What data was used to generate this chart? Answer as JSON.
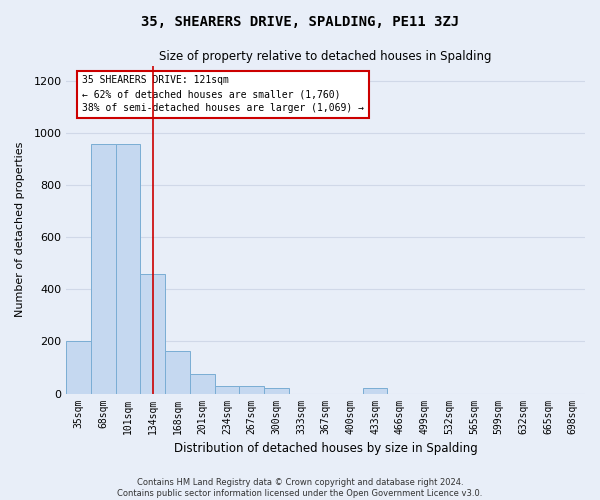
{
  "title": "35, SHEARERS DRIVE, SPALDING, PE11 3ZJ",
  "subtitle": "Size of property relative to detached houses in Spalding",
  "xlabel": "Distribution of detached houses by size in Spalding",
  "ylabel": "Number of detached properties",
  "bar_color": "#c5d8f0",
  "bar_edge_color": "#7aadd4",
  "background_color": "#e8eef8",
  "grid_color": "#d0d8e8",
  "categories": [
    "35sqm",
    "68sqm",
    "101sqm",
    "134sqm",
    "168sqm",
    "201sqm",
    "234sqm",
    "267sqm",
    "300sqm",
    "333sqm",
    "367sqm",
    "400sqm",
    "433sqm",
    "466sqm",
    "499sqm",
    "532sqm",
    "565sqm",
    "599sqm",
    "632sqm",
    "665sqm",
    "698sqm"
  ],
  "values": [
    200,
    960,
    960,
    460,
    165,
    75,
    30,
    30,
    20,
    0,
    0,
    0,
    20,
    0,
    0,
    0,
    0,
    0,
    0,
    0,
    0
  ],
  "ylim": [
    0,
    1260
  ],
  "yticks": [
    0,
    200,
    400,
    600,
    800,
    1000,
    1200
  ],
  "property_line_x": 3,
  "property_line_color": "#cc0000",
  "annotation_text": "35 SHEARERS DRIVE: 121sqm\n← 62% of detached houses are smaller (1,760)\n38% of semi-detached houses are larger (1,069) →",
  "annotation_box_color": "#ffffff",
  "annotation_box_edge": "#cc0000",
  "footer": "Contains HM Land Registry data © Crown copyright and database right 2024.\nContains public sector information licensed under the Open Government Licence v3.0."
}
